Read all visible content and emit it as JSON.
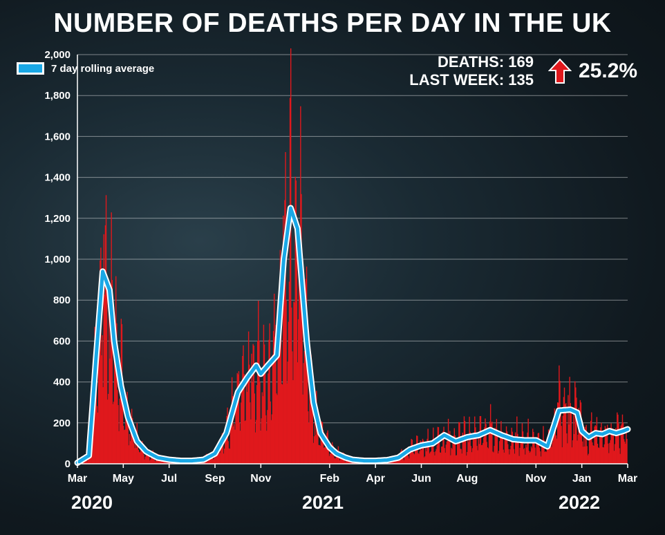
{
  "title": "NUMBER OF DEATHS PER DAY IN THE UK",
  "legend": {
    "label": "7 day rolling average"
  },
  "stats": {
    "deaths": "DEATHS: 169",
    "last_week": "LAST WEEK: 135",
    "change": "25.2%",
    "change_direction": "up"
  },
  "years": [
    "2020",
    "2021",
    "2022"
  ],
  "colors": {
    "bars": "#e0181c",
    "average": "#19a8e6",
    "average_outline": "#ffffff",
    "arrow": "#e0181c"
  },
  "chart_data": {
    "type": "bar",
    "title": "NUMBER OF DEATHS PER DAY IN THE UK",
    "xlabel": "",
    "ylabel": "",
    "ylim": [
      0,
      2000
    ],
    "yticks": [
      0,
      200,
      400,
      600,
      800,
      1000,
      1200,
      1400,
      1600,
      1800,
      2000
    ],
    "xlim_months": [
      0,
      24
    ],
    "xticks": [
      {
        "label": "Mar",
        "month": 0
      },
      {
        "label": "May",
        "month": 2
      },
      {
        "label": "Jul",
        "month": 4
      },
      {
        "label": "Sep",
        "month": 6
      },
      {
        "label": "Nov",
        "month": 8
      },
      {
        "label": "Feb",
        "month": 11
      },
      {
        "label": "Apr",
        "month": 13
      },
      {
        "label": "Jun",
        "month": 15
      },
      {
        "label": "Aug",
        "month": 17
      },
      {
        "label": "Nov",
        "month": 20
      },
      {
        "label": "Jan",
        "month": 22
      },
      {
        "label": "Mar",
        "month": 24
      }
    ],
    "grid": true,
    "legend_position": "top-left",
    "series": [
      {
        "name": "7 day rolling average",
        "type": "line",
        "months": [
          0,
          0.5,
          0.8,
          1.1,
          1.4,
          1.6,
          1.9,
          2.2,
          2.6,
          3.0,
          3.5,
          4.0,
          4.5,
          5.0,
          5.5,
          6.0,
          6.5,
          7.0,
          7.4,
          7.8,
          8.0,
          8.3,
          8.7,
          9.0,
          9.3,
          9.6,
          10.0,
          10.3,
          10.6,
          11.0,
          11.3,
          11.7,
          12.0,
          12.5,
          13.0,
          13.5,
          14.0,
          14.5,
          15.0,
          15.5,
          16.0,
          16.5,
          17.0,
          17.5,
          18.0,
          18.5,
          19.0,
          19.5,
          20.0,
          20.5,
          21.0,
          21.5,
          21.8,
          22.0,
          22.3,
          22.6,
          22.9,
          23.2,
          23.5,
          23.8,
          24.0
        ],
        "values": [
          5,
          40,
          500,
          940,
          850,
          600,
          380,
          230,
          110,
          60,
          30,
          20,
          15,
          15,
          20,
          50,
          150,
          350,
          420,
          480,
          440,
          480,
          530,
          1000,
          1250,
          1150,
          600,
          300,
          150,
          80,
          50,
          30,
          20,
          15,
          15,
          18,
          30,
          70,
          90,
          100,
          140,
          110,
          130,
          140,
          165,
          140,
          120,
          115,
          115,
          85,
          260,
          265,
          250,
          160,
          130,
          150,
          145,
          160,
          150,
          160,
          169
        ]
      }
    ]
  }
}
